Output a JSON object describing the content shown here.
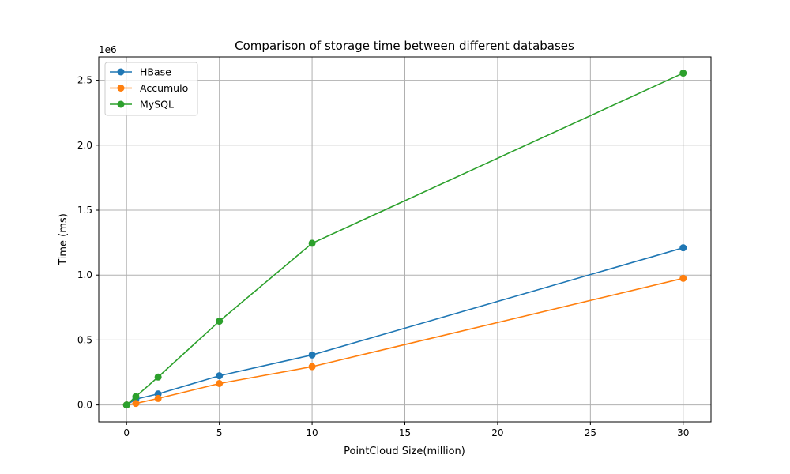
{
  "chart_data": {
    "type": "line",
    "title": "Comparison of storage time between different databases",
    "xlabel": "PointCloud Size(million)",
    "ylabel": "Time (ms)",
    "y_offset_label": "1e6",
    "xlim": [
      -1.5,
      31.5
    ],
    "ylim": [
      -0.13,
      2.68
    ],
    "x_ticks": [
      "0",
      "5",
      "10",
      "15",
      "20",
      "25",
      "30"
    ],
    "y_ticks": [
      "0.0",
      "0.5",
      "1.0",
      "1.5",
      "2.0",
      "2.5"
    ],
    "x": [
      0,
      0.5,
      1.7,
      5,
      10,
      30
    ],
    "series": [
      {
        "name": "HBase",
        "color": "#1f77b4",
        "values": [
          0.0,
          0.045,
          0.085,
          0.225,
          0.385,
          1.21
        ]
      },
      {
        "name": "Accumulo",
        "color": "#ff7f0e",
        "values": [
          0.0,
          0.012,
          0.05,
          0.165,
          0.295,
          0.975
        ]
      },
      {
        "name": "MySQL",
        "color": "#2ca02c",
        "values": [
          0.0,
          0.065,
          0.215,
          0.645,
          1.245,
          2.555
        ]
      }
    ],
    "grid": true,
    "legend_position": "upper-left"
  }
}
